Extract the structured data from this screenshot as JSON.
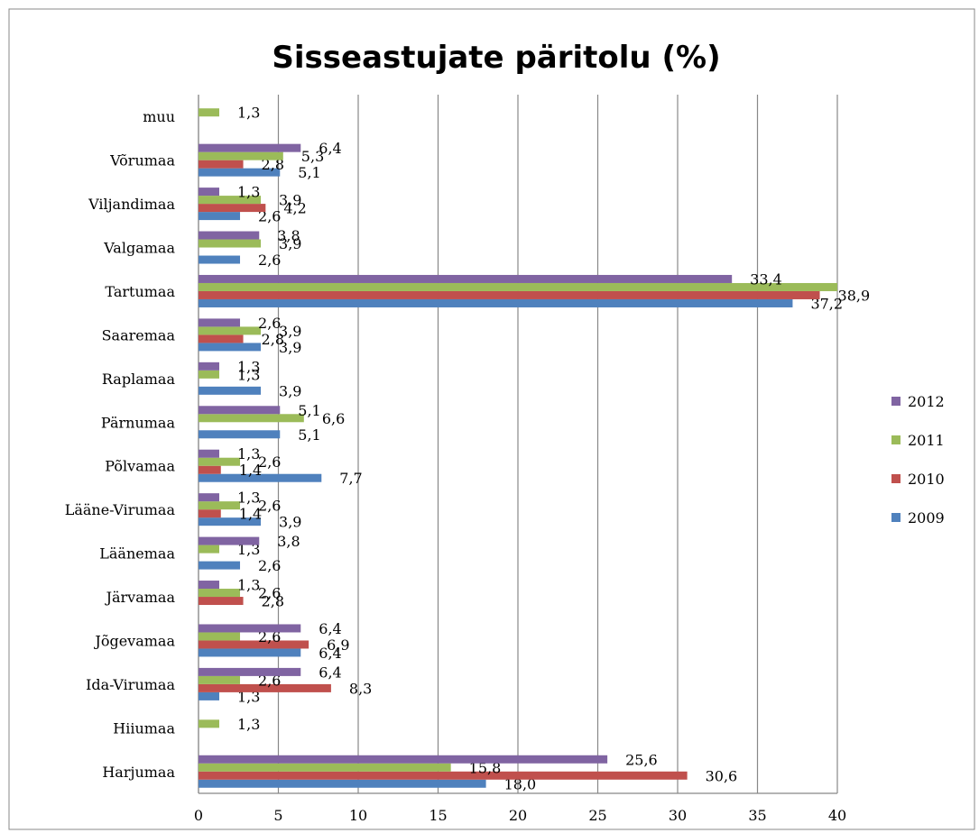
{
  "chart_data": {
    "type": "hbar",
    "title": "Sisseastujate päritolu (%)",
    "categories": [
      "Harjumaa",
      "Hiiumaa",
      "Ida-Virumaa",
      "Jõgevamaa",
      "Järvamaa",
      "Läänemaa",
      "Lääne-Virumaa",
      "Põlvamaa",
      "Pärnumaa",
      "Raplamaa",
      "Saaremaa",
      "Tartumaa",
      "Valgamaa",
      "Viljandimaa",
      "Võrumaa",
      "muu"
    ],
    "series": [
      {
        "name": "2009",
        "color": "#4f81bd",
        "values": [
          18.0,
          null,
          1.3,
          6.4,
          null,
          2.6,
          3.9,
          7.7,
          5.1,
          3.9,
          3.9,
          37.2,
          2.6,
          2.6,
          5.1,
          null
        ],
        "value_labels": [
          "18,0",
          null,
          "1,3",
          "6,4",
          null,
          "2,6",
          "3,9",
          "7,7",
          "5,1",
          "3,9",
          "3,9",
          "37,2",
          "2,6",
          "2,6",
          "5,1",
          null
        ]
      },
      {
        "name": "2010",
        "color": "#c0504d",
        "values": [
          30.6,
          null,
          8.3,
          6.9,
          2.8,
          null,
          1.4,
          1.4,
          null,
          null,
          2.8,
          38.9,
          null,
          4.2,
          2.8,
          null
        ],
        "value_labels": [
          "30,6",
          null,
          "8,3",
          "6,9",
          "2,8",
          null,
          "1,4",
          "1,4",
          null,
          null,
          "2,8",
          "38,9",
          null,
          "4,2",
          "2,8",
          null
        ]
      },
      {
        "name": "2011",
        "color": "#9bbb59",
        "values": [
          15.8,
          1.3,
          2.6,
          2.6,
          2.6,
          1.3,
          2.6,
          2.6,
          6.6,
          1.3,
          3.9,
          40,
          3.9,
          3.9,
          5.3,
          1.3
        ],
        "value_labels": [
          "15,8",
          "1,3",
          "2,6",
          "2,6",
          "2,6",
          "1,3",
          "2,6",
          "2,6",
          "6,6",
          "1,3",
          "3,9",
          null,
          "3,9",
          "3,9",
          "5,3",
          "1,3"
        ]
      },
      {
        "name": "2012",
        "color": "#8064a2",
        "values": [
          25.6,
          null,
          6.4,
          6.4,
          1.3,
          3.8,
          1.3,
          1.3,
          5.1,
          1.3,
          2.6,
          33.4,
          3.8,
          1.3,
          6.4,
          null
        ],
        "value_labels": [
          "25,6",
          null,
          "6,4",
          "6,4",
          "1,3",
          "3,8",
          "1,3",
          "1,3",
          "5,1",
          "1,3",
          "2,6",
          "33,4",
          "3,8",
          "1,3",
          "6,4",
          null
        ]
      }
    ],
    "xlim": [
      0,
      40
    ],
    "xticks": [
      0,
      5,
      10,
      15,
      20,
      25,
      30,
      35,
      40
    ],
    "grid": true,
    "legend": "right"
  }
}
